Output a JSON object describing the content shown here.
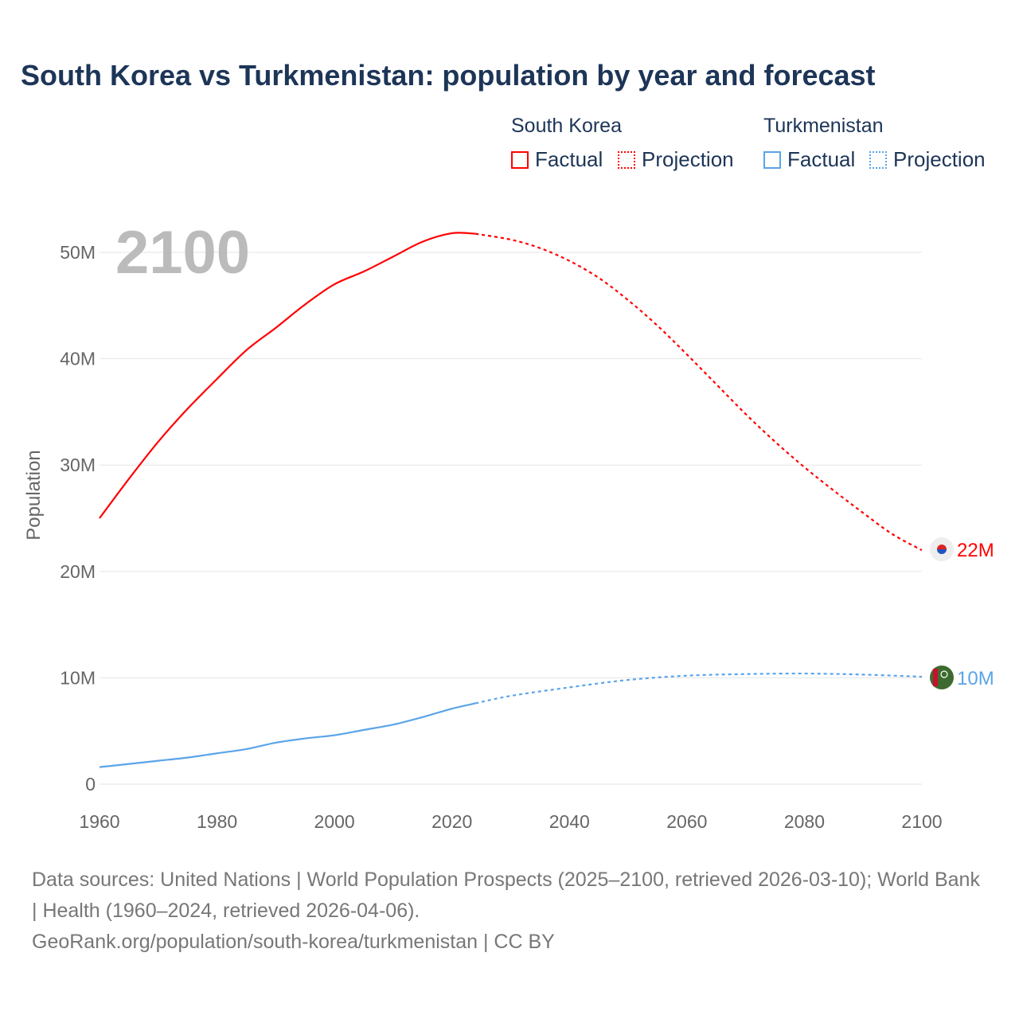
{
  "title": "South Korea vs Turkmenistan: population by year and forecast",
  "legend": {
    "groups": [
      {
        "name": "South Korea",
        "factual": "Factual",
        "projection": "Projection"
      },
      {
        "name": "Turkmenistan",
        "factual": "Factual",
        "projection": "Projection"
      }
    ]
  },
  "footer": {
    "line1": "Data sources: United Nations | World Population Prospects (2025–2100, retrieved 2026-03-10); World Bank | Health (1960–2024, retrieved 2026-04-06).",
    "line2": "GeoRank.org/population/south-korea/turkmenistan | CC BY"
  },
  "chart_data": {
    "type": "line",
    "title": "South Korea vs Turkmenistan: population by year and forecast",
    "year_label": "2100",
    "xlabel": "",
    "ylabel": "Population",
    "xlim": [
      1960,
      2100
    ],
    "ylim": [
      0,
      55
    ],
    "x_ticks": [
      1960,
      1980,
      2000,
      2020,
      2040,
      2060,
      2080,
      2100
    ],
    "y_ticks": [
      {
        "v": 0,
        "label": "0"
      },
      {
        "v": 10,
        "label": "10M"
      },
      {
        "v": 20,
        "label": "20M"
      },
      {
        "v": 30,
        "label": "30M"
      },
      {
        "v": 40,
        "label": "40M"
      },
      {
        "v": 50,
        "label": "50M"
      }
    ],
    "series": [
      {
        "name": "South Korea",
        "color": "#ff0000",
        "end_label": "22M",
        "flag": "south-korea",
        "factual": {
          "x": [
            1960,
            1965,
            1970,
            1975,
            1980,
            1985,
            1990,
            1995,
            2000,
            2005,
            2010,
            2015,
            2020,
            2024
          ],
          "y": [
            25.0,
            28.7,
            32.2,
            35.3,
            38.1,
            40.8,
            42.9,
            45.1,
            47.0,
            48.2,
            49.6,
            51.0,
            51.8,
            51.75
          ]
        },
        "projection": {
          "x": [
            2024,
            2030,
            2035,
            2040,
            2045,
            2050,
            2055,
            2060,
            2065,
            2070,
            2075,
            2080,
            2085,
            2090,
            2095,
            2100
          ],
          "y": [
            51.75,
            51.2,
            50.4,
            49.2,
            47.6,
            45.5,
            43.1,
            40.4,
            37.6,
            34.8,
            32.2,
            29.8,
            27.6,
            25.5,
            23.5,
            22.0
          ]
        }
      },
      {
        "name": "Turkmenistan",
        "color": "#5ba4e8",
        "end_label": "10M",
        "flag": "turkmenistan",
        "factual": {
          "x": [
            1960,
            1965,
            1970,
            1975,
            1980,
            1985,
            1990,
            1995,
            2000,
            2005,
            2010,
            2015,
            2020,
            2024
          ],
          "y": [
            1.6,
            1.9,
            2.2,
            2.5,
            2.9,
            3.3,
            3.9,
            4.3,
            4.6,
            5.1,
            5.6,
            6.3,
            7.1,
            7.6
          ]
        },
        "projection": {
          "x": [
            2024,
            2030,
            2040,
            2050,
            2060,
            2070,
            2080,
            2090,
            2100
          ],
          "y": [
            7.6,
            8.3,
            9.1,
            9.8,
            10.2,
            10.35,
            10.4,
            10.3,
            10.1
          ]
        }
      }
    ]
  }
}
